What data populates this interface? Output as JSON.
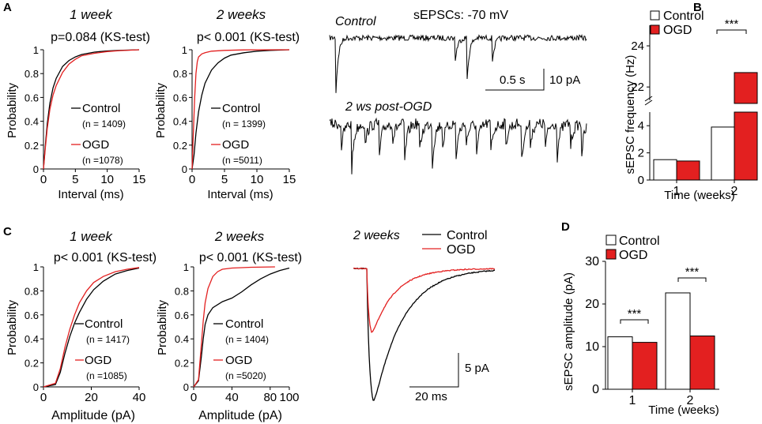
{
  "colors": {
    "control": "#000000",
    "ogd": "#e32020",
    "bar_control": "#ffffff",
    "bar_ogd": "#e32020"
  },
  "panel_labels": {
    "A": "A",
    "B": "B",
    "C": "C",
    "D": "D"
  },
  "chart_data": [
    {
      "id": "A1",
      "type": "line",
      "title": "1 week",
      "subtitle": "p=0.084 (KS-test)",
      "xlabel": "Interval (ms)",
      "ylabel": "Probability",
      "xlim": [
        0,
        15
      ],
      "ylim": [
        0,
        1
      ],
      "xticks": [
        "0",
        "5",
        "10",
        "15"
      ],
      "yticks": [
        "0",
        "0.2",
        "0.4",
        "0.6",
        "0.8",
        "1"
      ],
      "legend": [
        {
          "name": "Control",
          "n": "(n = 1409)"
        },
        {
          "name": "OGD",
          "n": "(n =1078)"
        }
      ],
      "series": [
        {
          "name": "Control",
          "x": [
            0,
            0.3,
            0.6,
            1,
            1.5,
            2,
            3,
            4,
            5,
            6,
            8,
            10,
            12,
            15
          ],
          "y": [
            0,
            0.2,
            0.38,
            0.55,
            0.68,
            0.76,
            0.86,
            0.91,
            0.94,
            0.96,
            0.98,
            0.99,
            0.995,
            1
          ]
        },
        {
          "name": "OGD",
          "x": [
            0,
            0.3,
            0.6,
            1,
            1.5,
            2,
            3,
            4,
            5,
            6,
            8,
            10,
            12,
            15
          ],
          "y": [
            0,
            0.18,
            0.34,
            0.5,
            0.62,
            0.7,
            0.81,
            0.88,
            0.92,
            0.95,
            0.97,
            0.985,
            0.993,
            1
          ]
        }
      ]
    },
    {
      "id": "A2",
      "type": "line",
      "title": "2 weeks",
      "subtitle": "p< 0.001 (KS-test)",
      "xlabel": "Interval (ms)",
      "ylabel": "Probability",
      "xlim": [
        0,
        15
      ],
      "ylim": [
        0,
        1
      ],
      "xticks": [
        "0",
        "5",
        "10",
        "15"
      ],
      "yticks": [
        "0",
        "0.2",
        "0.4",
        "0.6",
        "0.8",
        "1"
      ],
      "legend": [
        {
          "name": "Control",
          "n": "(n = 1399)"
        },
        {
          "name": "OGD",
          "n": "(n =5011)"
        }
      ],
      "series": [
        {
          "name": "Control",
          "x": [
            0,
            0.3,
            0.6,
            1,
            1.5,
            2,
            3,
            4,
            5,
            6,
            8,
            10,
            12,
            15
          ],
          "y": [
            0,
            0.12,
            0.3,
            0.48,
            0.62,
            0.72,
            0.83,
            0.89,
            0.93,
            0.955,
            0.975,
            0.988,
            0.995,
            1
          ]
        },
        {
          "name": "OGD",
          "x": [
            0,
            0.2,
            0.4,
            0.6,
            0.8,
            1,
            1.5,
            2,
            3,
            5,
            8,
            15
          ],
          "y": [
            0,
            0.3,
            0.6,
            0.8,
            0.9,
            0.94,
            0.965,
            0.975,
            0.988,
            0.995,
            0.999,
            1
          ]
        }
      ]
    },
    {
      "id": "A3",
      "type": "trace",
      "title": "sEPSCs: -70 mV",
      "labels": [
        "Control",
        "2 ws post-OGD"
      ],
      "scalebar": {
        "x": "0.5 s",
        "y": "10 pA"
      }
    },
    {
      "id": "B",
      "type": "bar",
      "ylabel": "sEPSC frequency (Hz)",
      "xlabel": "Time (weeks)",
      "categories": [
        "1",
        "2"
      ],
      "series": [
        {
          "name": "Control",
          "values": [
            1.5,
            3.9
          ]
        },
        {
          "name": "OGD",
          "values": [
            1.4,
            22.7
          ]
        }
      ],
      "yticks_low": [
        "0",
        "2",
        "4"
      ],
      "yticks_high": [
        "22",
        "24"
      ],
      "ylim_low": [
        0,
        5
      ],
      "ylim_high": [
        21.2,
        25
      ],
      "significance": [
        {
          "category": "2",
          "label": "***"
        }
      ]
    },
    {
      "id": "C1",
      "type": "line",
      "title": "1 week",
      "subtitle": "p< 0.001 (KS-test)",
      "xlabel": "Amplitude (pA)",
      "ylabel": "Probability",
      "xlim": [
        0,
        40
      ],
      "ylim": [
        0,
        1
      ],
      "xticks": [
        "0",
        "20",
        "40"
      ],
      "yticks": [
        "0",
        "0.2",
        "0.4",
        "0.6",
        "0.8",
        "1"
      ],
      "legend": [
        {
          "name": "Control",
          "n": "(n = 1417)"
        },
        {
          "name": "OGD",
          "n": "(n =1085)"
        }
      ],
      "series": [
        {
          "name": "Control",
          "x": [
            0,
            5,
            7,
            9,
            11,
            13,
            15,
            18,
            21,
            25,
            30,
            35,
            40
          ],
          "y": [
            0,
            0.02,
            0.12,
            0.28,
            0.42,
            0.53,
            0.62,
            0.73,
            0.81,
            0.88,
            0.94,
            0.97,
            0.99
          ]
        },
        {
          "name": "OGD",
          "x": [
            0,
            5,
            7,
            9,
            11,
            13,
            15,
            18,
            21,
            25,
            30,
            35,
            40
          ],
          "y": [
            0,
            0.03,
            0.15,
            0.33,
            0.48,
            0.6,
            0.7,
            0.8,
            0.87,
            0.92,
            0.96,
            0.98,
            0.995
          ]
        }
      ]
    },
    {
      "id": "C2",
      "type": "line",
      "title": "2 weeks",
      "subtitle": "p< 0.001 (KS-test)",
      "xlabel": "Amplitude (pA)",
      "ylabel": "Probability",
      "xlim": [
        0,
        100
      ],
      "ylim": [
        0,
        1
      ],
      "xticks": [
        "0",
        "40",
        "80",
        "100"
      ],
      "yticks": [
        "0",
        "0.2",
        "0.4",
        "0.6",
        "0.8",
        "1"
      ],
      "legend": [
        {
          "name": "Control",
          "n": "(n = 1404)"
        },
        {
          "name": "OGD",
          "n": "(n =5020)"
        }
      ],
      "series": [
        {
          "name": "Control",
          "x": [
            0,
            5,
            8,
            10,
            12,
            15,
            20,
            30,
            40,
            50,
            60,
            70,
            80,
            90,
            100
          ],
          "y": [
            0,
            0.05,
            0.25,
            0.4,
            0.52,
            0.6,
            0.66,
            0.71,
            0.74,
            0.79,
            0.85,
            0.9,
            0.94,
            0.97,
            0.99
          ]
        },
        {
          "name": "OGD",
          "x": [
            0,
            5,
            8,
            10,
            12,
            15,
            20,
            25,
            30,
            40,
            60,
            85
          ],
          "y": [
            0,
            0.06,
            0.35,
            0.55,
            0.7,
            0.82,
            0.92,
            0.96,
            0.98,
            0.99,
            0.997,
            1
          ]
        }
      ]
    },
    {
      "id": "C3",
      "type": "trace",
      "title": "2 weeks",
      "legend": [
        "Control",
        "OGD"
      ],
      "scalebar": {
        "x": "20 ms",
        "y": "5 pA"
      }
    },
    {
      "id": "D",
      "type": "bar",
      "ylabel": "sEPSC amplitude (pA)",
      "xlabel": "Time (weeks)",
      "categories": [
        "1",
        "2"
      ],
      "series": [
        {
          "name": "Control",
          "values": [
            12.3,
            22.6
          ]
        },
        {
          "name": "OGD",
          "values": [
            11.0,
            12.5
          ]
        }
      ],
      "ylim": [
        0,
        30
      ],
      "yticks": [
        "0",
        "10",
        "20",
        "30"
      ],
      "significance": [
        {
          "category": "1",
          "label": "***"
        },
        {
          "category": "2",
          "label": "***"
        }
      ]
    }
  ]
}
